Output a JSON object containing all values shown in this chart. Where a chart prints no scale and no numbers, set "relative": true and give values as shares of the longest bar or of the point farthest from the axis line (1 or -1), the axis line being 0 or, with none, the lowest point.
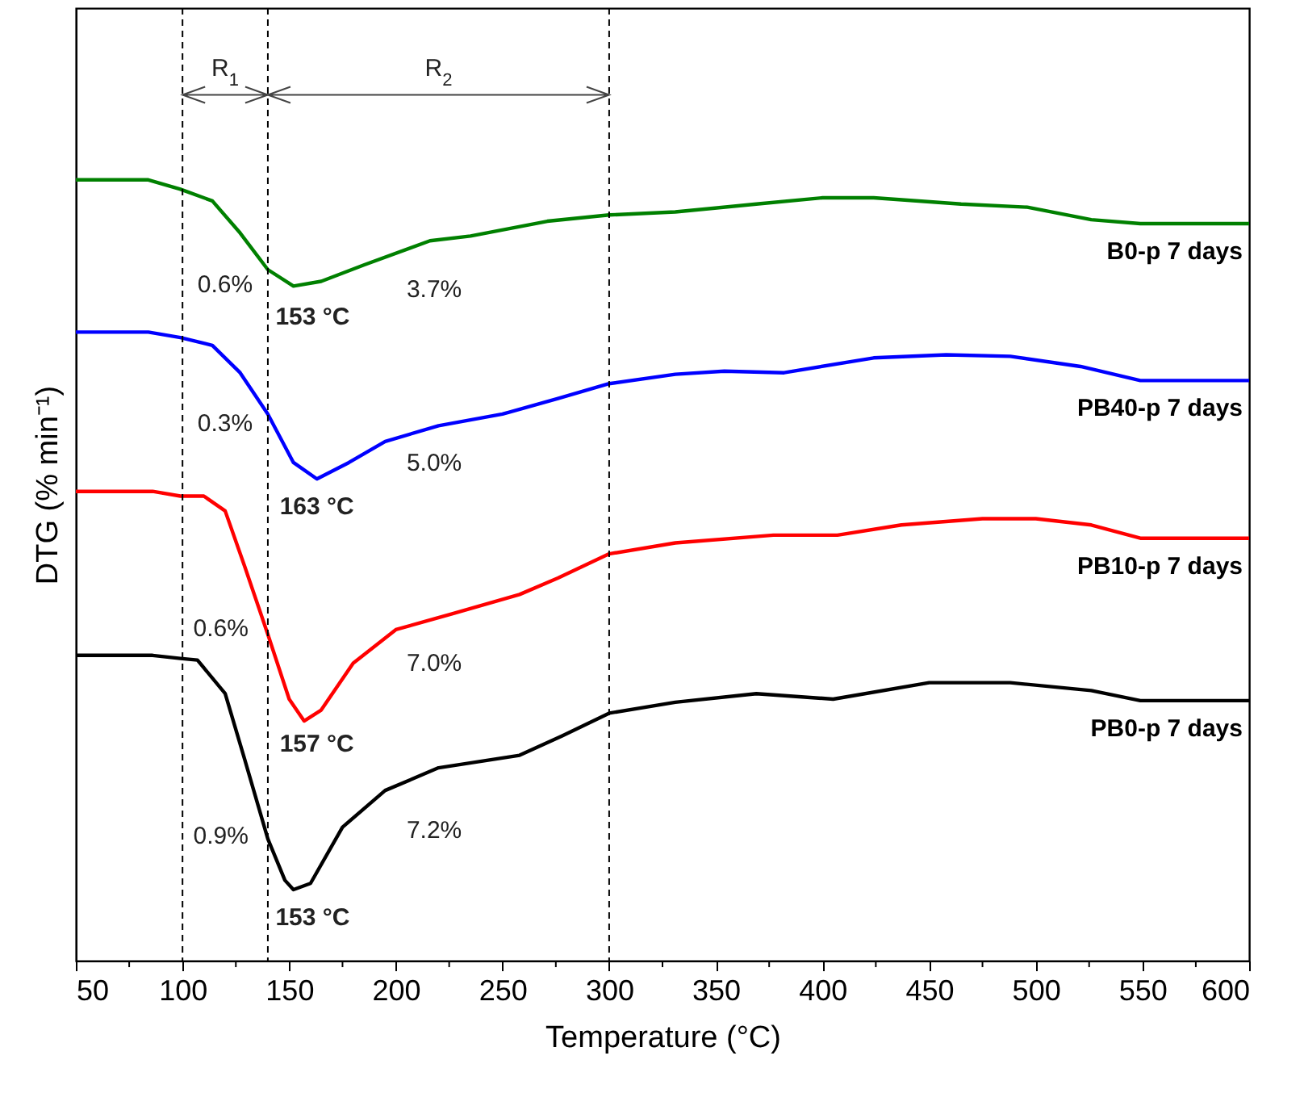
{
  "chart_data": {
    "type": "line",
    "relative": true,
    "xlabel": "Temperature (°C)",
    "ylabel": "DTG (% min⁻¹)",
    "xlim": [
      50,
      600
    ],
    "xticks": [
      50,
      {
        "value": 75,
        "label": null
      },
      100,
      {
        "value": 125,
        "label": null
      },
      150,
      {
        "value": 175,
        "label": null
      },
      200,
      {
        "value": 225,
        "label": null
      },
      250,
      {
        "value": 275,
        "label": null
      },
      300,
      {
        "value": 325,
        "label": null
      },
      350,
      {
        "value": 375,
        "label": null
      },
      400,
      {
        "value": 425,
        "label": null
      },
      450,
      {
        "value": 475,
        "label": null
      },
      500,
      {
        "value": 525,
        "label": null
      },
      550,
      {
        "value": 575,
        "label": null
      },
      600
    ],
    "grid": false,
    "legend": false,
    "series": [
      {
        "name": "B0-p  7 days",
        "color": "#008000",
        "x": [
          50,
          84,
          99,
          114,
          127,
          140,
          152,
          165,
          185,
          216,
          235,
          271,
          300,
          331,
          369,
          400,
          424,
          465,
          496,
          526,
          549,
          600
        ],
        "values": [
          1.0,
          1.0,
          0.988,
          0.973,
          0.932,
          0.885,
          0.864,
          0.87,
          0.891,
          0.922,
          0.928,
          0.947,
          0.955,
          0.959,
          0.969,
          0.977,
          0.977,
          0.969,
          0.965,
          0.949,
          0.944,
          0.944
        ]
      },
      {
        "name": "PB40-p 7 days",
        "color": "#0000ff",
        "x": [
          50,
          84,
          99,
          114,
          127,
          140,
          152,
          163,
          178,
          195,
          220,
          250,
          276,
          300,
          331,
          354,
          382,
          424,
          458,
          488,
          521,
          549,
          600
        ],
        "values": [
          0.805,
          0.805,
          0.798,
          0.788,
          0.753,
          0.7,
          0.638,
          0.617,
          0.638,
          0.665,
          0.685,
          0.7,
          0.72,
          0.739,
          0.751,
          0.755,
          0.753,
          0.772,
          0.776,
          0.774,
          0.761,
          0.743,
          0.743
        ]
      },
      {
        "name": "PB10-p 7 days",
        "color": "#ff0000",
        "x": [
          50,
          86,
          99,
          110,
          120,
          129,
          140,
          150,
          157,
          165,
          180,
          200,
          226,
          258,
          276,
          300,
          331,
          377,
          407,
          437,
          475,
          500,
          526,
          549,
          600
        ],
        "values": [
          0.601,
          0.601,
          0.595,
          0.595,
          0.576,
          0.506,
          0.418,
          0.335,
          0.307,
          0.321,
          0.381,
          0.424,
          0.444,
          0.469,
          0.49,
          0.521,
          0.535,
          0.545,
          0.545,
          0.558,
          0.566,
          0.566,
          0.558,
          0.541,
          0.541
        ]
      },
      {
        "name": "PB0-p 7 days",
        "color": "#000000",
        "x": [
          50,
          86,
          99,
          107,
          120,
          129,
          140,
          148,
          152,
          160,
          175,
          195,
          220,
          258,
          278,
          300,
          331,
          369,
          405,
          450,
          488,
          526,
          549,
          600
        ],
        "values": [
          0.391,
          0.391,
          0.387,
          0.385,
          0.342,
          0.259,
          0.156,
          0.103,
          0.091,
          0.099,
          0.171,
          0.218,
          0.247,
          0.263,
          0.288,
          0.317,
          0.331,
          0.342,
          0.335,
          0.356,
          0.356,
          0.346,
          0.333,
          0.333
        ]
      }
    ],
    "ref_lines": [
      {
        "axis": "x",
        "value": 100,
        "color": "#000000",
        "line_style": "dashed"
      },
      {
        "axis": "x",
        "value": 140,
        "color": "#000000",
        "line_style": "dashed"
      },
      {
        "axis": "x",
        "value": 300,
        "color": "#000000",
        "line_style": "dashed"
      }
    ],
    "annotations": [
      "R$_{1}$",
      "R$_{2}$",
      "0.6%",
      "3.7%",
      "153 °C",
      "0.3%",
      "5.0%",
      "163 °C",
      "0.6%",
      "7.0%",
      "157 °C",
      "0.9%",
      "7.2%",
      "153 °C"
    ]
  }
}
